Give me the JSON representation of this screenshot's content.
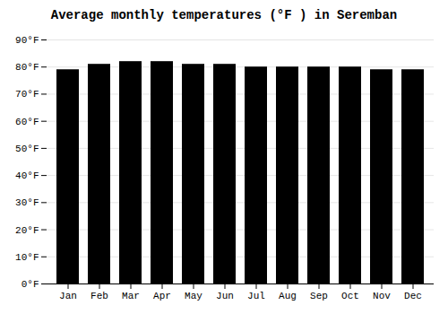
{
  "chart_data": {
    "type": "bar",
    "title": "Average monthly temperatures (°F ) in Seremban",
    "categories": [
      "Jan",
      "Feb",
      "Mar",
      "Apr",
      "May",
      "Jun",
      "Jul",
      "Aug",
      "Sep",
      "Oct",
      "Nov",
      "Dec"
    ],
    "values": [
      79,
      81,
      82,
      82,
      81,
      81,
      80,
      80,
      80,
      80,
      79,
      79
    ],
    "ylim": [
      0,
      90
    ],
    "yticks": [
      {
        "value": 0,
        "label": "0°F"
      },
      {
        "value": 10,
        "label": "10°F"
      },
      {
        "value": 20,
        "label": "20°F"
      },
      {
        "value": 30,
        "label": "30°F"
      },
      {
        "value": 40,
        "label": "40°F"
      },
      {
        "value": 50,
        "label": "50°F"
      },
      {
        "value": 60,
        "label": "60°F"
      },
      {
        "value": 70,
        "label": "70°F"
      },
      {
        "value": 80,
        "label": "80°F"
      },
      {
        "value": 90,
        "label": "90°F"
      }
    ],
    "grid": true
  }
}
